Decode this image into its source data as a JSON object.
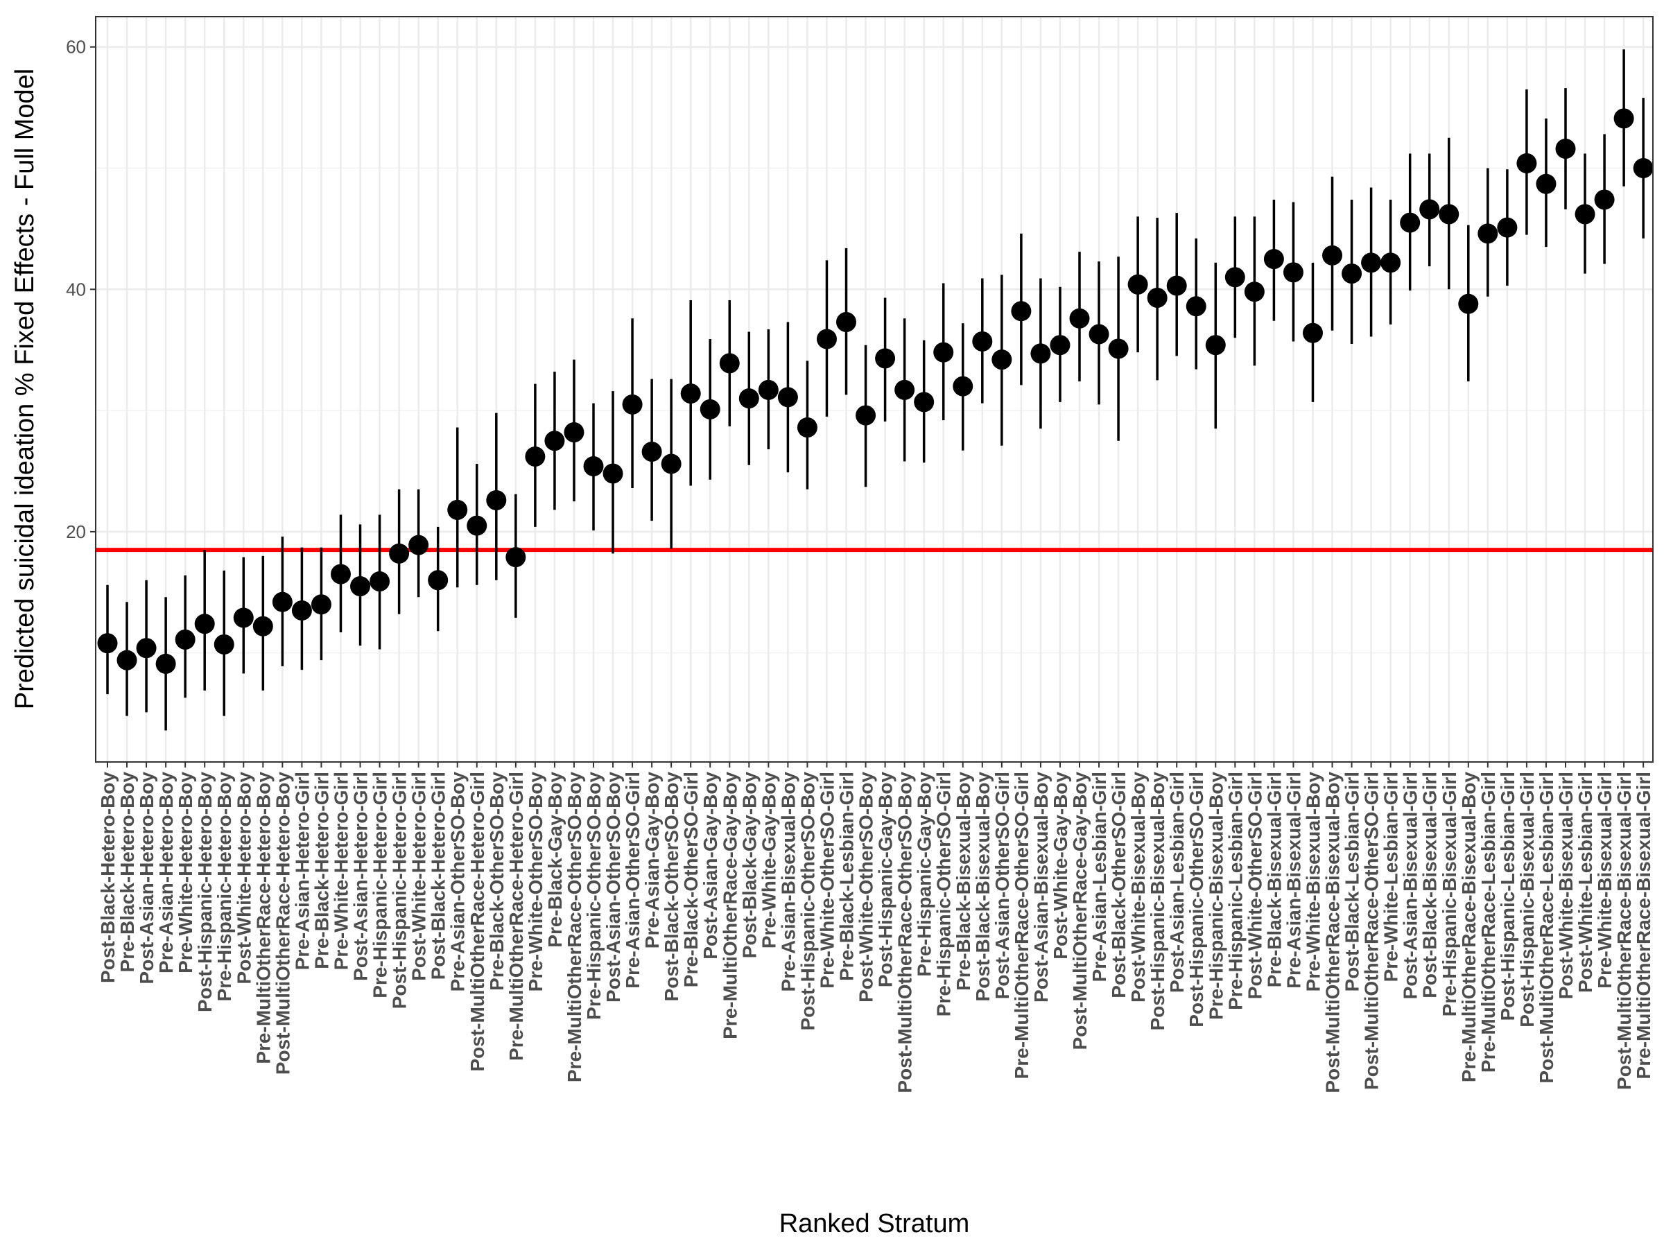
{
  "chart_data": {
    "type": "scatter",
    "xlabel": "Ranked Stratum",
    "ylabel": "Predicted suicidal ideation % Fixed Effects - Full Model",
    "ylim": [
      1,
      62.5
    ],
    "yticks": [
      20,
      40,
      60
    ],
    "ytick_labels": [
      "20",
      "40",
      "60"
    ],
    "grid": true,
    "reference_line": {
      "y": 18.5,
      "color": "#ff0000"
    },
    "point_color": "#000000",
    "categories": [
      "Post-Black-Hetero-Boy",
      "Pre-Black-Hetero-Boy",
      "Post-Asian-Hetero-Boy",
      "Pre-Asian-Hetero-Boy",
      "Pre-White-Hetero-Boy",
      "Post-Hispanic-Hetero-Boy",
      "Pre-Hispanic-Hetero-Boy",
      "Post-White-Hetero-Boy",
      "Pre-MultiOtherRace-Hetero-Boy",
      "Post-MultiOtherRace-Hetero-Boy",
      "Pre-Asian-Hetero-Girl",
      "Pre-Black-Hetero-Girl",
      "Pre-White-Hetero-Girl",
      "Post-Asian-Hetero-Girl",
      "Pre-Hispanic-Hetero-Girl",
      "Post-Hispanic-Hetero-Girl",
      "Post-White-Hetero-Girl",
      "Post-Black-Hetero-Girl",
      "Pre-Asian-OtherSO-Boy",
      "Post-MultiOtherRace-Hetero-Girl",
      "Pre-Black-OtherSO-Boy",
      "Pre-MultiOtherRace-Hetero-Girl",
      "Pre-White-OtherSO-Boy",
      "Pre-Black-Gay-Boy",
      "Pre-MultiOtherRace-OtherSO-Boy",
      "Pre-Hispanic-OtherSO-Boy",
      "Post-Asian-OtherSO-Boy",
      "Pre-Asian-OtherSO-Girl",
      "Pre-Asian-Gay-Boy",
      "Post-Black-OtherSO-Boy",
      "Pre-Black-OtherSO-Girl",
      "Post-Asian-Gay-Boy",
      "Pre-MultiOtherRace-Gay-Boy",
      "Post-Black-Gay-Boy",
      "Pre-White-Gay-Boy",
      "Pre-Asian-Bisexual-Boy",
      "Post-Hispanic-OtherSO-Boy",
      "Pre-White-OtherSO-Girl",
      "Pre-Black-Lesbian-Girl",
      "Post-White-OtherSO-Boy",
      "Post-Hispanic-Gay-Boy",
      "Post-MultiOtherRace-OtherSO-Boy",
      "Pre-Hispanic-Gay-Boy",
      "Pre-Hispanic-OtherSO-Girl",
      "Pre-Black-Bisexual-Boy",
      "Post-Black-Bisexual-Boy",
      "Post-Asian-OtherSO-Girl",
      "Pre-MultiOtherRace-OtherSO-Girl",
      "Post-Asian-Bisexual-Boy",
      "Post-White-Gay-Boy",
      "Post-MultiOtherRace-Gay-Boy",
      "Pre-Asian-Lesbian-Girl",
      "Post-Black-OtherSO-Girl",
      "Post-White-Bisexual-Boy",
      "Post-Hispanic-Bisexual-Boy",
      "Post-Asian-Lesbian-Girl",
      "Post-Hispanic-OtherSO-Girl",
      "Pre-Hispanic-Bisexual-Boy",
      "Pre-Hispanic-Lesbian-Girl",
      "Post-White-OtherSO-Girl",
      "Pre-Black-Bisexual-Girl",
      "Pre-Asian-Bisexual-Girl",
      "Pre-White-Bisexual-Boy",
      "Post-MultiOtherRace-Bisexual-Boy",
      "Post-Black-Lesbian-Girl",
      "Post-MultiOtherRace-OtherSO-Girl",
      "Pre-White-Lesbian-Girl",
      "Post-Asian-Bisexual-Girl",
      "Post-Black-Bisexual-Girl",
      "Pre-Hispanic-Bisexual-Girl",
      "Pre-MultiOtherRace-Bisexual-Boy",
      "Pre-MultiOtherRace-Lesbian-Girl",
      "Post-Hispanic-Lesbian-Girl",
      "Post-Hispanic-Bisexual-Girl",
      "Post-MultiOtherRace-Lesbian-Girl",
      "Post-White-Bisexual-Girl",
      "Post-White-Lesbian-Girl",
      "Pre-White-Bisexual-Girl",
      "Post-MultiOtherRace-Bisexual-Girl",
      "Pre-MultiOtherRace-Bisexual-Girl"
    ],
    "values": [
      10.8,
      9.4,
      10.4,
      9.1,
      11.1,
      12.4,
      10.7,
      12.9,
      12.2,
      14.2,
      13.5,
      14.0,
      16.5,
      15.5,
      15.9,
      18.2,
      18.9,
      16.0,
      21.8,
      20.5,
      22.6,
      17.9,
      26.2,
      27.5,
      28.2,
      25.4,
      24.8,
      30.5,
      26.6,
      25.6,
      31.4,
      30.1,
      33.9,
      31.0,
      31.7,
      31.1,
      28.6,
      35.9,
      37.3,
      29.6,
      34.3,
      31.7,
      30.7,
      34.8,
      32.0,
      35.7,
      34.2,
      38.2,
      34.7,
      35.4,
      37.6,
      36.3,
      35.1,
      40.4,
      39.3,
      40.3,
      38.6,
      35.4,
      41.0,
      39.8,
      42.5,
      41.4,
      36.4,
      42.8,
      41.3,
      42.2,
      42.2,
      45.5,
      46.6,
      46.2,
      38.8,
      44.6,
      45.1,
      50.4,
      48.7,
      51.6,
      46.2,
      47.4,
      54.1,
      50.0
    ],
    "lower": [
      6.6,
      4.8,
      5.1,
      3.6,
      6.3,
      6.9,
      4.8,
      8.3,
      6.9,
      8.9,
      8.6,
      9.4,
      11.7,
      10.6,
      10.3,
      13.2,
      14.6,
      11.8,
      15.4,
      15.6,
      16.0,
      12.9,
      20.4,
      21.8,
      22.5,
      20.1,
      18.2,
      23.6,
      20.9,
      18.6,
      23.8,
      24.3,
      28.7,
      25.5,
      26.8,
      24.9,
      23.5,
      29.5,
      31.3,
      23.7,
      29.1,
      25.8,
      25.7,
      29.2,
      26.7,
      30.6,
      27.1,
      32.1,
      28.5,
      30.7,
      32.4,
      30.5,
      27.5,
      34.8,
      32.5,
      34.5,
      33.4,
      28.5,
      36.0,
      33.7,
      37.4,
      35.7,
      30.7,
      36.6,
      35.5,
      36.1,
      37.1,
      39.9,
      41.9,
      40.0,
      32.4,
      39.4,
      40.3,
      44.5,
      43.5,
      46.6,
      41.3,
      42.1,
      48.5,
      44.2
    ],
    "upper": [
      15.6,
      14.2,
      16.0,
      14.6,
      16.4,
      18.5,
      16.8,
      17.9,
      18.0,
      19.6,
      18.7,
      18.7,
      21.4,
      20.6,
      21.4,
      23.5,
      23.5,
      20.4,
      28.6,
      25.6,
      29.8,
      23.1,
      32.2,
      33.2,
      34.2,
      30.6,
      31.6,
      37.6,
      32.6,
      32.6,
      39.1,
      35.9,
      39.1,
      36.5,
      36.7,
      37.3,
      34.1,
      42.4,
      43.4,
      35.4,
      39.3,
      37.6,
      35.8,
      40.5,
      37.2,
      40.9,
      41.2,
      44.6,
      40.9,
      40.2,
      43.1,
      42.3,
      42.7,
      46.0,
      45.9,
      46.3,
      44.2,
      42.2,
      46.0,
      46.0,
      47.4,
      47.2,
      42.2,
      49.3,
      47.4,
      48.4,
      47.4,
      51.2,
      51.2,
      52.5,
      45.3,
      50.0,
      49.9,
      56.5,
      54.1,
      56.6,
      51.2,
      52.8,
      59.8,
      55.8
    ]
  }
}
